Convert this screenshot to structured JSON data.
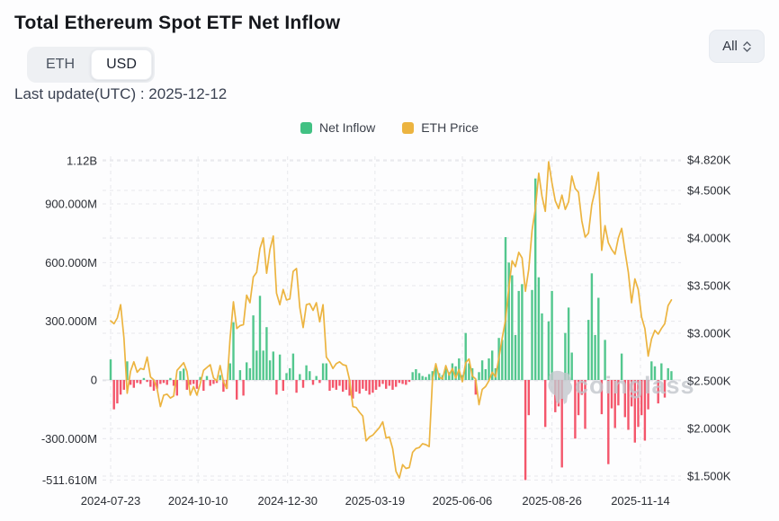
{
  "page": {
    "title": "Total Ethereum Spot ETF Net Inflow",
    "last_update": "Last update(UTC) : 2025-12-12"
  },
  "toggle": {
    "options": [
      "ETH",
      "USD"
    ],
    "selected": "USD"
  },
  "range_select": {
    "value": "All"
  },
  "legend": [
    {
      "label": "Net Inflow",
      "color": "#41c183"
    },
    {
      "label": "ETH Price",
      "color": "#ecb440"
    }
  ],
  "watermark": "coinglass",
  "chart_data": {
    "type": "combo bar+line",
    "title": "Total Ethereum Spot ETF Net Inflow (USD)",
    "start_date": "2024-07-23",
    "end_date": "2025-12-12",
    "step_days": 3,
    "left_axis": {
      "name": "Net Inflow (USD)",
      "min": -511.61,
      "max": 1120,
      "unit": "M",
      "ticks": [
        {
          "value": 1120,
          "label": "1.12B"
        },
        {
          "value": 900,
          "label": "900.000M"
        },
        {
          "value": 600,
          "label": "600.000M"
        },
        {
          "value": 300,
          "label": "300.000M"
        },
        {
          "value": 0,
          "label": "0"
        },
        {
          "value": -300,
          "label": "-300.000M"
        },
        {
          "value": -511.61,
          "label": "-511.610M"
        }
      ]
    },
    "right_axis": {
      "name": "ETH Price",
      "min": 1500,
      "max": 4820,
      "unit": "$",
      "ticks": [
        {
          "value": 4820,
          "label": "$4.820K"
        },
        {
          "value": 4500,
          "label": "$4.500K"
        },
        {
          "value": 4000,
          "label": "$4.000K"
        },
        {
          "value": 3500,
          "label": "$3.500K"
        },
        {
          "value": 3000,
          "label": "$3.000K"
        },
        {
          "value": 2500,
          "label": "$2.500K"
        },
        {
          "value": 2000,
          "label": "$2.000K"
        },
        {
          "value": 1500,
          "label": "$1.500K"
        }
      ]
    },
    "x_axis": {
      "ticks": [
        {
          "day": 0,
          "label": "2024-07-23"
        },
        {
          "day": 79,
          "label": "2024-10-10"
        },
        {
          "day": 160,
          "label": "2024-12-30"
        },
        {
          "day": 239,
          "label": "2025-03-19"
        },
        {
          "day": 318,
          "label": "2025-06-06"
        },
        {
          "day": 399,
          "label": "2025-08-26"
        },
        {
          "day": 479,
          "label": "2025-11-14"
        }
      ]
    },
    "colors": {
      "inflow_positive": "#53c78e",
      "inflow_negative": "#f4566b",
      "price_line": "#ecb440",
      "grid": "#e7e8ec",
      "zero_line": "#dcdee3",
      "axis_text": "#2b2e35",
      "watermark": "#c3c7cd"
    },
    "net_inflow_musd": [
      105,
      -150,
      -120,
      -75,
      -50,
      95,
      -25,
      -40,
      -15,
      -20,
      10,
      -10,
      -35,
      -55,
      -45,
      -20,
      -15,
      -25,
      10,
      -30,
      -80,
      45,
      58,
      -50,
      -25,
      -20,
      -45,
      15,
      -55,
      20,
      -30,
      -20,
      -15,
      25,
      -60,
      -45,
      85,
      295,
      -100,
      50,
      -80,
      90,
      60,
      330,
      150,
      430,
      150,
      270,
      100,
      145,
      -75,
      130,
      -55,
      35,
      60,
      135,
      -65,
      30,
      -40,
      75,
      45,
      -25,
      20,
      -15,
      85,
      85,
      -55,
      -40,
      -50,
      -30,
      -60,
      -50,
      -80,
      -95,
      -60,
      -70,
      -45,
      -55,
      -75,
      -65,
      -50,
      -35,
      -20,
      -45,
      -30,
      -50,
      -35,
      -15,
      -20,
      -25,
      -10,
      40,
      55,
      35,
      20,
      15,
      30,
      45,
      65,
      35,
      25,
      60,
      40,
      85,
      70,
      110,
      25,
      240,
      85,
      60,
      -75,
      40,
      100,
      55,
      110,
      150,
      60,
      215,
      205,
      730,
      600,
      535,
      230,
      455,
      490,
      -511.61,
      -180,
      460,
      1030,
      525,
      340,
      -240,
      300,
      455,
      -165,
      -135,
      -447,
      240,
      370,
      140,
      -300,
      -180,
      -76,
      -250,
      307,
      545,
      230,
      420,
      -175,
      205,
      -430,
      -145,
      -245,
      -130,
      135,
      -190,
      -255,
      -135,
      -320,
      -240,
      -180,
      -310,
      -150,
      95,
      70,
      -120,
      85,
      -90,
      60,
      45
    ],
    "eth_price_usd": [
      3130,
      3100,
      3160,
      3300,
      2950,
      2370,
      2600,
      2700,
      2590,
      2630,
      2620,
      2750,
      2540,
      2510,
      2420,
      2230,
      2350,
      2360,
      2320,
      2340,
      2610,
      2650,
      2690,
      2600,
      2350,
      2440,
      2350,
      2470,
      2610,
      2640,
      2670,
      2530,
      2500,
      2660,
      2490,
      2420,
      2950,
      3330,
      3050,
      3080,
      3090,
      3400,
      3320,
      3590,
      3640,
      3890,
      4000,
      3630,
      3880,
      4020,
      3420,
      3300,
      3460,
      3350,
      3360,
      3650,
      3680,
      3270,
      3060,
      3300,
      3310,
      3240,
      3320,
      3120,
      3300,
      2750,
      2700,
      2630,
      2680,
      2700,
      2670,
      2660,
      2510,
      2230,
      2220,
      2170,
      2130,
      1870,
      1910,
      1930,
      1970,
      2010,
      2070,
      1900,
      1910,
      1790,
      1550,
      1480,
      1620,
      1580,
      1590,
      1750,
      1790,
      1800,
      1840,
      1830,
      1810,
      2520,
      2680,
      2540,
      2520,
      2660,
      2560,
      2630,
      2530,
      2620,
      2490,
      2690,
      2730,
      2550,
      2520,
      2250,
      2410,
      2440,
      2500,
      2590,
      2540,
      2740,
      2950,
      3140,
      3480,
      3760,
      3700,
      3850,
      3790,
      3440,
      3670,
      4080,
      4310,
      4680,
      4440,
      4280,
      4800,
      4580,
      4390,
      4310,
      4450,
      4300,
      4380,
      4650,
      4520,
      4480,
      4180,
      4010,
      4050,
      4350,
      4500,
      4690,
      3870,
      4130,
      3950,
      3880,
      3830,
      4000,
      4100,
      3860,
      3640,
      3320,
      3570,
      3460,
      3170,
      3050,
      2760,
      2940,
      3030,
      2990,
      3050,
      3100,
      3290,
      3350
    ]
  }
}
